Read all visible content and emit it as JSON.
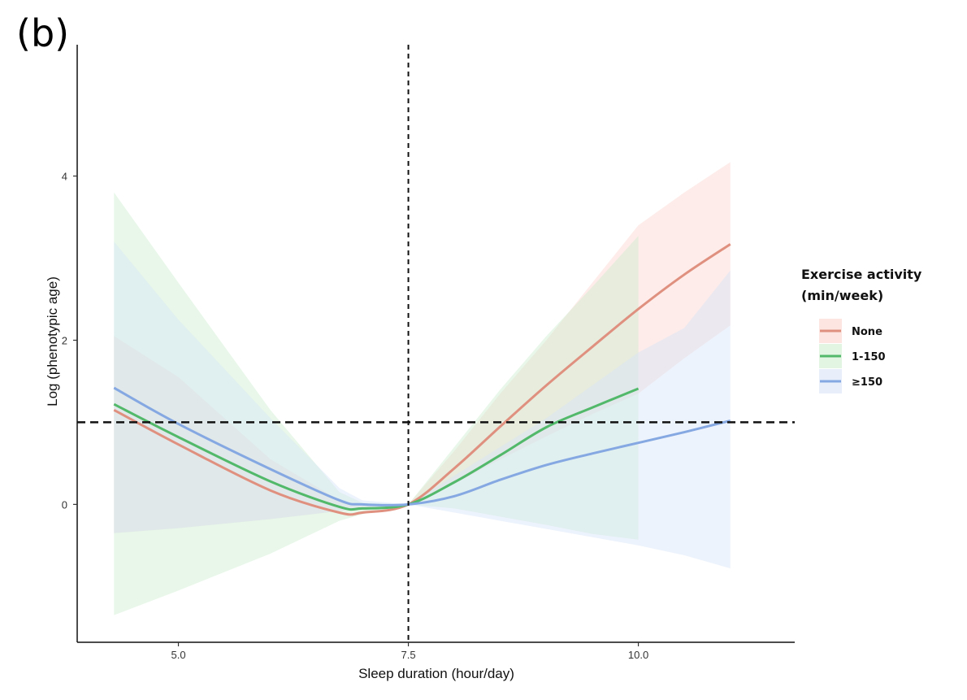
{
  "panel_label": "(b)",
  "chart_data": {
    "type": "line",
    "title": "",
    "xlabel": "Sleep duration (hour/day)",
    "ylabel": "Log (phenotypic age)",
    "xlim": [
      3.9,
      11.7
    ],
    "ylim": [
      -1.68,
      5.6
    ],
    "x_ticks": [
      {
        "value": 5,
        "label": "5.0"
      },
      {
        "value": 7.5,
        "label": "7.5"
      },
      {
        "value": 10,
        "label": "10.0"
      }
    ],
    "y_ticks": [
      {
        "value": 0,
        "label": "0"
      },
      {
        "value": 2,
        "label": "2"
      },
      {
        "value": 4,
        "label": "4"
      }
    ],
    "reference_lines": {
      "x": 7.5,
      "y": 1
    },
    "legend": {
      "title_line1": "Exercise activity",
      "title_line2": "(min/week)",
      "position": "right"
    },
    "series": [
      {
        "name": "None",
        "color": "#e0907f",
        "fill": "#fbd5ce",
        "x": [
          4.3,
          5.0,
          6.0,
          6.75,
          7.0,
          7.5,
          8.0,
          8.5,
          9.0,
          9.5,
          10.0,
          10.5,
          11.0
        ],
        "y": [
          1.15,
          0.73,
          0.17,
          -0.1,
          -0.1,
          0.0,
          0.44,
          0.95,
          1.45,
          1.92,
          2.38,
          2.8,
          3.17
        ],
        "lower": [
          -0.35,
          -0.29,
          -0.18,
          -0.08,
          -0.05,
          0.0,
          0.25,
          0.55,
          0.83,
          1.1,
          1.35,
          1.78,
          2.18
        ],
        "upper": [
          2.05,
          1.55,
          0.55,
          0.05,
          -0.02,
          0.0,
          0.65,
          1.35,
          2.0,
          2.7,
          3.4,
          3.8,
          4.17
        ]
      },
      {
        "name": "1-150",
        "color": "#52b86a",
        "fill": "#cdeecf",
        "x": [
          4.3,
          5.0,
          6.0,
          6.75,
          7.0,
          7.5,
          8.0,
          8.5,
          9.0,
          9.5,
          10.0
        ],
        "y": [
          1.22,
          0.82,
          0.28,
          -0.03,
          -0.05,
          0.0,
          0.27,
          0.6,
          0.94,
          1.18,
          1.41
        ],
        "lower": [
          -1.35,
          -1.05,
          -0.6,
          -0.2,
          -0.12,
          0.0,
          -0.05,
          -0.15,
          -0.25,
          -0.36,
          -0.43
        ],
        "upper": [
          3.8,
          2.7,
          1.15,
          0.15,
          0.02,
          0.0,
          0.7,
          1.4,
          2.05,
          2.65,
          3.27
        ]
      },
      {
        "name": "≥150",
        "color": "#85a8e2",
        "fill": "#d8e4f8",
        "x": [
          4.3,
          5.0,
          6.0,
          6.75,
          7.0,
          7.5,
          8.0,
          8.5,
          9.0,
          9.5,
          10.0,
          10.5,
          11.0
        ],
        "y": [
          1.42,
          0.98,
          0.43,
          0.05,
          0.0,
          0.0,
          0.1,
          0.3,
          0.48,
          0.62,
          0.75,
          0.88,
          1.02
        ],
        "lower": [
          -0.35,
          -0.29,
          -0.18,
          -0.08,
          -0.05,
          0.0,
          -0.1,
          -0.2,
          -0.3,
          -0.4,
          -0.5,
          -0.62,
          -0.78
        ],
        "upper": [
          3.2,
          2.25,
          1.05,
          0.2,
          0.05,
          0.0,
          0.35,
          0.7,
          1.05,
          1.45,
          1.85,
          2.15,
          2.85
        ]
      }
    ]
  }
}
